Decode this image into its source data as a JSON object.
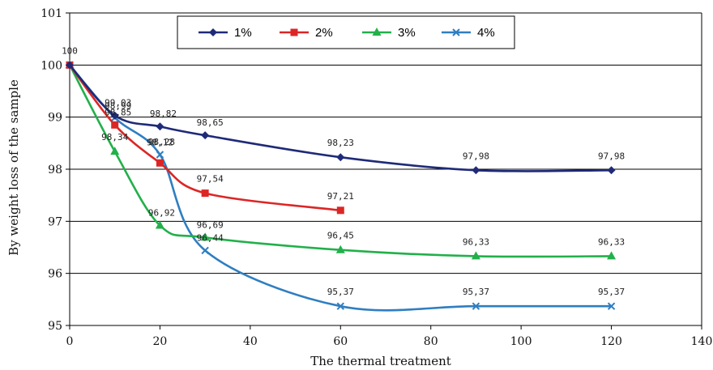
{
  "chart_data": {
    "type": "line",
    "title": "",
    "xlabel": "The  thermal treatment",
    "ylabel": "By weight loss of the sample",
    "xlim": [
      0,
      140
    ],
    "ylim": [
      95,
      101
    ],
    "x_ticks": [
      "0",
      "20",
      "40",
      "60",
      "80",
      "100",
      "120",
      "140"
    ],
    "y_ticks": [
      "95",
      "96",
      "97",
      "98",
      "99",
      "100",
      "101"
    ],
    "grid": "horizontal",
    "legend_position": "top",
    "series": [
      {
        "name": "1%",
        "color": "#1f2a78",
        "marker": "diamond",
        "x": [
          0,
          10,
          20,
          30,
          60,
          90,
          120
        ],
        "y": [
          100,
          99.03,
          98.82,
          98.65,
          98.23,
          97.98,
          97.98
        ],
        "labels": [
          "100",
          "99,03",
          "98,82",
          "98,65",
          "98,23",
          "97,98",
          "97,98"
        ]
      },
      {
        "name": "2%",
        "color": "#dc2626",
        "marker": "square",
        "x": [
          0,
          10,
          20,
          30,
          60
        ],
        "y": [
          100,
          98.85,
          98.12,
          97.54,
          97.21
        ],
        "labels": [
          "",
          "98,85",
          "98,12",
          "97,54",
          "97,21"
        ]
      },
      {
        "name": "3%",
        "color": "#22b04a",
        "marker": "triangle",
        "x": [
          0,
          10,
          20,
          30,
          60,
          90,
          120
        ],
        "y": [
          100,
          98.34,
          96.92,
          96.69,
          96.45,
          96.33,
          96.33
        ],
        "labels": [
          "",
          "98,34",
          "96,92",
          "96,69",
          "96,45",
          "96,33",
          "96,33"
        ]
      },
      {
        "name": "4%",
        "color": "#2f7ec1",
        "marker": "x",
        "x": [
          0,
          10,
          20,
          30,
          60,
          90,
          120
        ],
        "y": [
          100,
          98.99,
          98.28,
          96.44,
          95.37,
          95.37,
          95.37
        ],
        "labels": [
          "",
          "98,99",
          "98,28",
          "96,44",
          "95,37",
          "95,37",
          "95,37"
        ]
      }
    ]
  }
}
